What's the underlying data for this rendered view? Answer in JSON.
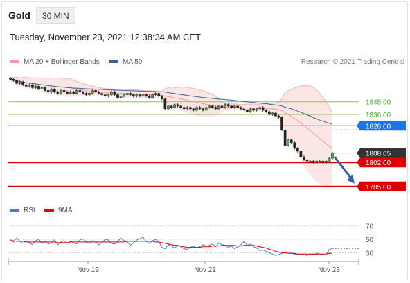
{
  "header": {
    "symbol": "Gold",
    "interval": "30 MIN",
    "datetime": "Tuesday, November 23, 2021 12:38:34 AM CET"
  },
  "legend": {
    "ma20_label": "MA 20 + Bollinger Bands",
    "ma50_label": "MA 50",
    "credit": "Research © 2021 Trading Central",
    "colors": {
      "ma20": "#f49a9a",
      "ma50": "#3d5f9c"
    }
  },
  "rsi_legend": {
    "rsi_label": "RSI",
    "ma_label": "9MA",
    "colors": {
      "rsi": "#4a79d8",
      "ma": "#e00000"
    }
  },
  "chart_data": [
    {
      "type": "candlestick",
      "title": "",
      "ylim": [
        1779,
        1866
      ],
      "x_ticks": [
        "Nov 19",
        "Nov 21",
        "Nov 23"
      ],
      "close": [
        1861,
        1860,
        1858,
        1859,
        1857,
        1856,
        1857,
        1855,
        1856,
        1854,
        1855,
        1853,
        1852,
        1854,
        1852,
        1851,
        1853,
        1852,
        1851,
        1852,
        1851,
        1853,
        1852,
        1851,
        1850,
        1851,
        1853,
        1852,
        1851,
        1850,
        1849,
        1850,
        1852,
        1850,
        1848,
        1849,
        1850,
        1851,
        1850,
        1849,
        1850,
        1849,
        1850,
        1849,
        1848,
        1850,
        1851,
        1849,
        1847,
        1840,
        1842,
        1841,
        1843,
        1842,
        1841,
        1840,
        1841,
        1840,
        1839,
        1841,
        1840,
        1839,
        1841,
        1842,
        1841,
        1840,
        1842,
        1841,
        1843,
        1842,
        1841,
        1842,
        1841,
        1840,
        1839,
        1838,
        1840,
        1839,
        1840,
        1841,
        1839,
        1838,
        1836,
        1837,
        1835,
        1834,
        1825,
        1814,
        1818,
        1816,
        1812,
        1810,
        1806,
        1804,
        1803,
        1803,
        1802,
        1803,
        1803,
        1802,
        1803,
        1805,
        1808.65
      ],
      "levels": [
        {
          "value": 1845.0,
          "label": "1845.00",
          "kind": "resistance",
          "color": "#8bc34a"
        },
        {
          "value": 1836.0,
          "label": "1836.00",
          "kind": "resistance",
          "color": "#8bc34a"
        },
        {
          "value": 1828.0,
          "label": "1828.00",
          "kind": "ma50",
          "color": "#1e73e8"
        },
        {
          "value": 1808.65,
          "label": "1808.65",
          "kind": "last-price",
          "color": "#333333"
        },
        {
          "value": 1802.0,
          "label": "1802.00",
          "kind": "pivot",
          "color": "#e00000"
        },
        {
          "value": 1785.0,
          "label": "1785.00",
          "kind": "target",
          "color": "#e00000"
        }
      ],
      "forecast_arrow": {
        "from": 1806,
        "to": 1787,
        "direction": "down"
      }
    },
    {
      "type": "line",
      "name": "RSI",
      "ylim": [
        20,
        78
      ],
      "y_ticks": [
        70,
        50,
        30
      ],
      "rsi": [
        50,
        46,
        52,
        47,
        44,
        48,
        45,
        42,
        48,
        50,
        44,
        47,
        43,
        45,
        49,
        42,
        46,
        48,
        44,
        47,
        45,
        43,
        49,
        51,
        46,
        44,
        48,
        47,
        42,
        45,
        50,
        49,
        44,
        43,
        47,
        52,
        48,
        46,
        41,
        45,
        49,
        51,
        53,
        47,
        44,
        48,
        50,
        46,
        38,
        36,
        42,
        40,
        37,
        41,
        39,
        36,
        35,
        38,
        40,
        37,
        39,
        42,
        40,
        41,
        43,
        39,
        45,
        42,
        41,
        38,
        40,
        36,
        39,
        42,
        47,
        41,
        43,
        39,
        37,
        33,
        34,
        32,
        30,
        28,
        26,
        27,
        29,
        30,
        31,
        29,
        28,
        27,
        28,
        27,
        26,
        28,
        27,
        29,
        28,
        27,
        27,
        35,
        36
      ],
      "ma9": [
        48,
        48,
        47,
        47,
        47,
        46,
        46,
        46,
        46,
        46,
        46,
        46,
        46,
        46,
        46,
        45,
        45,
        45,
        45,
        46,
        46,
        46,
        46,
        46,
        46,
        46,
        46,
        46,
        46,
        46,
        46,
        46,
        46,
        46,
        46,
        46,
        46,
        47,
        47,
        47,
        47,
        47,
        47,
        47,
        47,
        47,
        46,
        46,
        45,
        44,
        43,
        42,
        41,
        41,
        40,
        39,
        38,
        38,
        38,
        38,
        38,
        39,
        39,
        39,
        40,
        40,
        40,
        41,
        41,
        41,
        41,
        41,
        40,
        40,
        41,
        41,
        41,
        41,
        40,
        39,
        38,
        37,
        35,
        34,
        32,
        31,
        30,
        30,
        29,
        29,
        29,
        28,
        28,
        28,
        28,
        28,
        28,
        28,
        28,
        28,
        28,
        29,
        29
      ]
    }
  ]
}
